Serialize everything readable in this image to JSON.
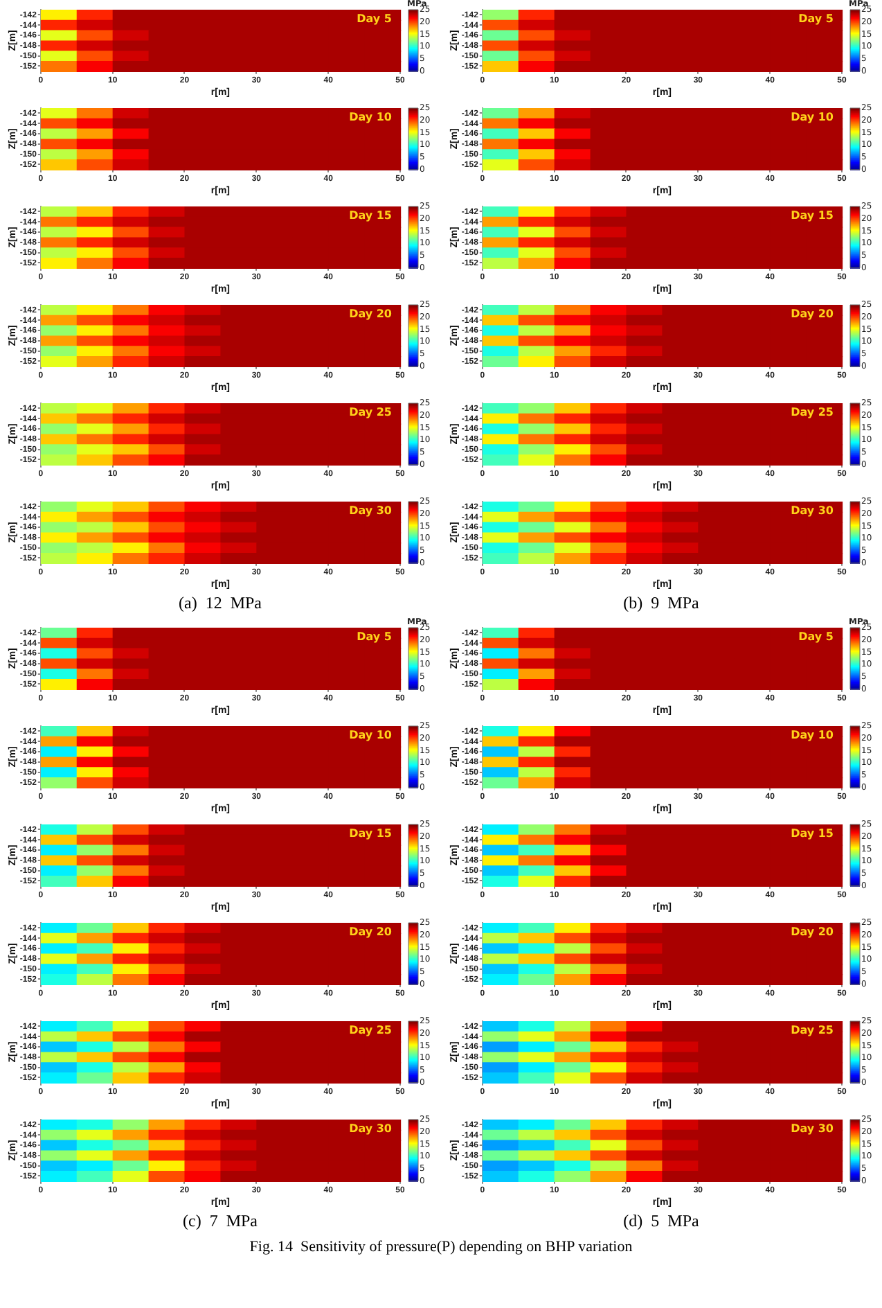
{
  "chart_data": [
    {
      "type": "heatmap",
      "title": "Day 5",
      "xlabel": "r[m]",
      "ylabel": "Z[m]",
      "clabel": "MPa",
      "xlim": [
        0,
        50
      ],
      "xticks": [
        0,
        10,
        20,
        30,
        40,
        50
      ],
      "ylim": [
        -153,
        -141
      ],
      "yticks": [
        -142,
        -144,
        -146,
        -148,
        -150,
        -152
      ],
      "clim": [
        0,
        25
      ],
      "cticks": [
        0,
        5,
        10,
        15,
        20,
        25
      ],
      "cells": [
        [
          16,
          21,
          24,
          24,
          24,
          24,
          24,
          24,
          24,
          24
        ],
        [
          21,
          23,
          24,
          24,
          24,
          24,
          24,
          24,
          24,
          24
        ],
        [
          15,
          20,
          23,
          24,
          24,
          24,
          24,
          24,
          24,
          24
        ],
        [
          21,
          23,
          24,
          24,
          24,
          24,
          24,
          24,
          24,
          24
        ],
        [
          15,
          20,
          23,
          24,
          24,
          24,
          24,
          24,
          24,
          24
        ],
        [
          19,
          22,
          24,
          24,
          24,
          24,
          24,
          24,
          24,
          24
        ]
      ]
    },
    {
      "type": "heatmap",
      "title": "Day 10",
      "xlabel": "r[m]",
      "ylabel": "Z[m]",
      "xlim": [
        0,
        50
      ],
      "xticks": [
        0,
        10,
        20,
        30,
        40,
        50
      ],
      "ylim": [
        -153,
        -141
      ],
      "yticks": [
        -142,
        -144,
        -146,
        -148,
        -150,
        -152
      ],
      "clim": [
        0,
        25
      ],
      "cticks": [
        0,
        5,
        10,
        15,
        20,
        25
      ],
      "cells": [
        [
          15,
          19,
          23,
          24,
          24,
          24,
          24,
          24,
          24,
          24
        ],
        [
          20,
          22,
          24,
          24,
          24,
          24,
          24,
          24,
          24,
          24
        ],
        [
          14,
          18,
          22,
          24,
          24,
          24,
          24,
          24,
          24,
          24
        ],
        [
          20,
          22,
          24,
          24,
          24,
          24,
          24,
          24,
          24,
          24
        ],
        [
          14,
          18,
          22,
          24,
          24,
          24,
          24,
          24,
          24,
          24
        ],
        [
          17,
          20,
          23,
          24,
          24,
          24,
          24,
          24,
          24,
          24
        ]
      ]
    },
    {
      "type": "heatmap",
      "title": "Day 15",
      "xlabel": "r[m]",
      "ylabel": "Z[m]",
      "xlim": [
        0,
        50
      ],
      "xticks": [
        0,
        10,
        20,
        30,
        40,
        50
      ],
      "ylim": [
        -153,
        -141
      ],
      "yticks": [
        -142,
        -144,
        -146,
        -148,
        -150,
        -152
      ],
      "clim": [
        0,
        25
      ],
      "cticks": [
        0,
        5,
        10,
        15,
        20,
        25
      ],
      "cells": [
        [
          14,
          17,
          21,
          23,
          24,
          24,
          24,
          24,
          24,
          24
        ],
        [
          19,
          21,
          23,
          24,
          24,
          24,
          24,
          24,
          24,
          24
        ],
        [
          14,
          16,
          20,
          23,
          24,
          24,
          24,
          24,
          24,
          24
        ],
        [
          19,
          21,
          23,
          24,
          24,
          24,
          24,
          24,
          24,
          24
        ],
        [
          14,
          16,
          20,
          23,
          24,
          24,
          24,
          24,
          24,
          24
        ],
        [
          16,
          19,
          22,
          24,
          24,
          24,
          24,
          24,
          24,
          24
        ]
      ]
    },
    {
      "type": "heatmap",
      "title": "Day 20",
      "xlabel": "r[m]",
      "ylabel": "Z[m]",
      "xlim": [
        0,
        50
      ],
      "xticks": [
        0,
        10,
        20,
        30,
        40,
        50
      ],
      "ylim": [
        -153,
        -141
      ],
      "yticks": [
        -142,
        -144,
        -146,
        -148,
        -150,
        -152
      ],
      "clim": [
        0,
        25
      ],
      "cticks": [
        0,
        5,
        10,
        15,
        20,
        25
      ],
      "cells": [
        [
          14,
          16,
          19,
          22,
          23,
          24,
          24,
          24,
          24,
          24
        ],
        [
          18,
          20,
          22,
          23,
          24,
          24,
          24,
          24,
          24,
          24
        ],
        [
          13,
          16,
          19,
          22,
          23,
          24,
          24,
          24,
          24,
          24
        ],
        [
          18,
          20,
          22,
          23,
          24,
          24,
          24,
          24,
          24,
          24
        ],
        [
          13,
          16,
          19,
          22,
          23,
          24,
          24,
          24,
          24,
          24
        ],
        [
          15,
          18,
          21,
          23,
          24,
          24,
          24,
          24,
          24,
          24
        ]
      ]
    },
    {
      "type": "heatmap",
      "title": "Day 25",
      "xlabel": "r[m]",
      "ylabel": "Z[m]",
      "xlim": [
        0,
        50
      ],
      "xticks": [
        0,
        10,
        20,
        30,
        40,
        50
      ],
      "ylim": [
        -153,
        -141
      ],
      "yticks": [
        -142,
        -144,
        -146,
        -148,
        -150,
        -152
      ],
      "clim": [
        0,
        25
      ],
      "cticks": [
        0,
        5,
        10,
        15,
        20,
        25
      ],
      "cells": [
        [
          14,
          15,
          18,
          21,
          23,
          24,
          24,
          24,
          24,
          24
        ],
        [
          17,
          19,
          21,
          23,
          24,
          24,
          24,
          24,
          24,
          24
        ],
        [
          13,
          15,
          18,
          21,
          23,
          24,
          24,
          24,
          24,
          24
        ],
        [
          17,
          19,
          21,
          23,
          24,
          24,
          24,
          24,
          24,
          24
        ],
        [
          13,
          15,
          17,
          20,
          23,
          24,
          24,
          24,
          24,
          24
        ],
        [
          14,
          17,
          20,
          22,
          24,
          24,
          24,
          24,
          24,
          24
        ]
      ]
    },
    {
      "type": "heatmap",
      "title": "Day 30",
      "xlabel": "r[m]",
      "ylabel": "Z[m]",
      "annotations": [
        "(a)  12  MPa"
      ],
      "xlim": [
        0,
        50
      ],
      "xticks": [
        0,
        10,
        20,
        30,
        40,
        50
      ],
      "ylim": [
        -153,
        -141
      ],
      "yticks": [
        -142,
        -144,
        -146,
        -148,
        -150,
        -152
      ],
      "clim": [
        0,
        25
      ],
      "cticks": [
        0,
        5,
        10,
        15,
        20,
        25
      ],
      "cells": [
        [
          13,
          15,
          17,
          20,
          22,
          23,
          24,
          24,
          24,
          24
        ],
        [
          16,
          18,
          20,
          22,
          23,
          24,
          24,
          24,
          24,
          24
        ],
        [
          13,
          14,
          17,
          20,
          22,
          23,
          24,
          24,
          24,
          24
        ],
        [
          16,
          18,
          20,
          22,
          23,
          24,
          24,
          24,
          24,
          24
        ],
        [
          13,
          14,
          16,
          19,
          22,
          23,
          24,
          24,
          24,
          24
        ],
        [
          14,
          16,
          19,
          21,
          23,
          24,
          24,
          24,
          24,
          24
        ]
      ]
    },
    {
      "type": "heatmap",
      "title": "Day 5",
      "xlabel": "r[m]",
      "ylabel": "Z[m]",
      "clabel": "MPa",
      "xlim": [
        0,
        50
      ],
      "xticks": [
        0,
        10,
        20,
        30,
        40,
        50
      ],
      "ylim": [
        -153,
        -141
      ],
      "yticks": [
        -142,
        -144,
        -146,
        -148,
        -150,
        -152
      ],
      "clim": [
        0,
        25
      ],
      "cticks": [
        0,
        5,
        10,
        15,
        20,
        25
      ],
      "cells": [
        [
          13,
          21,
          24,
          24,
          24,
          24,
          24,
          24,
          24,
          24
        ],
        [
          20,
          23,
          24,
          24,
          24,
          24,
          24,
          24,
          24,
          24
        ],
        [
          12,
          20,
          23,
          24,
          24,
          24,
          24,
          24,
          24,
          24
        ],
        [
          20,
          23,
          24,
          24,
          24,
          24,
          24,
          24,
          24,
          24
        ],
        [
          12,
          20,
          23,
          24,
          24,
          24,
          24,
          24,
          24,
          24
        ],
        [
          17,
          22,
          24,
          24,
          24,
          24,
          24,
          24,
          24,
          24
        ]
      ]
    },
    {
      "type": "heatmap",
      "title": "Day 10",
      "xlabel": "r[m]",
      "ylabel": "Z[m]",
      "xlim": [
        0,
        50
      ],
      "xticks": [
        0,
        10,
        20,
        30,
        40,
        50
      ],
      "ylim": [
        -153,
        -141
      ],
      "yticks": [
        -142,
        -144,
        -146,
        -148,
        -150,
        -152
      ],
      "clim": [
        0,
        25
      ],
      "cticks": [
        0,
        5,
        10,
        15,
        20,
        25
      ],
      "cells": [
        [
          12,
          18,
          23,
          24,
          24,
          24,
          24,
          24,
          24,
          24
        ],
        [
          19,
          22,
          24,
          24,
          24,
          24,
          24,
          24,
          24,
          24
        ],
        [
          11,
          17,
          22,
          24,
          24,
          24,
          24,
          24,
          24,
          24
        ],
        [
          19,
          22,
          24,
          24,
          24,
          24,
          24,
          24,
          24,
          24
        ],
        [
          11,
          17,
          22,
          24,
          24,
          24,
          24,
          24,
          24,
          24
        ],
        [
          15,
          20,
          23,
          24,
          24,
          24,
          24,
          24,
          24,
          24
        ]
      ]
    },
    {
      "type": "heatmap",
      "title": "Day 15",
      "xlabel": "r[m]",
      "ylabel": "Z[m]",
      "xlim": [
        0,
        50
      ],
      "xticks": [
        0,
        10,
        20,
        30,
        40,
        50
      ],
      "ylim": [
        -153,
        -141
      ],
      "yticks": [
        -142,
        -144,
        -146,
        -148,
        -150,
        -152
      ],
      "clim": [
        0,
        25
      ],
      "cticks": [
        0,
        5,
        10,
        15,
        20,
        25
      ],
      "cells": [
        [
          11,
          16,
          21,
          23,
          24,
          24,
          24,
          24,
          24,
          24
        ],
        [
          18,
          21,
          23,
          24,
          24,
          24,
          24,
          24,
          24,
          24
        ],
        [
          11,
          15,
          20,
          23,
          24,
          24,
          24,
          24,
          24,
          24
        ],
        [
          18,
          21,
          23,
          24,
          24,
          24,
          24,
          24,
          24,
          24
        ],
        [
          11,
          15,
          20,
          23,
          24,
          24,
          24,
          24,
          24,
          24
        ],
        [
          14,
          18,
          22,
          24,
          24,
          24,
          24,
          24,
          24,
          24
        ]
      ]
    },
    {
      "type": "heatmap",
      "title": "Day 20",
      "xlabel": "r[m]",
      "ylabel": "Z[m]",
      "xlim": [
        0,
        50
      ],
      "xticks": [
        0,
        10,
        20,
        30,
        40,
        50
      ],
      "ylim": [
        -153,
        -141
      ],
      "yticks": [
        -142,
        -144,
        -146,
        -148,
        -150,
        -152
      ],
      "clim": [
        0,
        25
      ],
      "cticks": [
        0,
        5,
        10,
        15,
        20,
        25
      ],
      "cells": [
        [
          11,
          14,
          19,
          22,
          23,
          24,
          24,
          24,
          24,
          24
        ],
        [
          17,
          20,
          22,
          23,
          24,
          24,
          24,
          24,
          24,
          24
        ],
        [
          10,
          14,
          18,
          22,
          23,
          24,
          24,
          24,
          24,
          24
        ],
        [
          17,
          20,
          22,
          23,
          24,
          24,
          24,
          24,
          24,
          24
        ],
        [
          10,
          14,
          18,
          21,
          23,
          24,
          24,
          24,
          24,
          24
        ],
        [
          12,
          16,
          20,
          23,
          24,
          24,
          24,
          24,
          24,
          24
        ]
      ]
    },
    {
      "type": "heatmap",
      "title": "Day 25",
      "xlabel": "r[m]",
      "ylabel": "Z[m]",
      "xlim": [
        0,
        50
      ],
      "xticks": [
        0,
        10,
        20,
        30,
        40,
        50
      ],
      "ylim": [
        -153,
        -141
      ],
      "yticks": [
        -142,
        -144,
        -146,
        -148,
        -150,
        -152
      ],
      "clim": [
        0,
        25
      ],
      "cticks": [
        0,
        5,
        10,
        15,
        20,
        25
      ],
      "cells": [
        [
          11,
          13,
          17,
          21,
          23,
          24,
          24,
          24,
          24,
          24
        ],
        [
          16,
          19,
          21,
          23,
          24,
          24,
          24,
          24,
          24,
          24
        ],
        [
          10,
          13,
          17,
          21,
          23,
          24,
          24,
          24,
          24,
          24
        ],
        [
          16,
          19,
          21,
          23,
          24,
          24,
          24,
          24,
          24,
          24
        ],
        [
          10,
          13,
          16,
          20,
          23,
          24,
          24,
          24,
          24,
          24
        ],
        [
          11,
          15,
          19,
          22,
          24,
          24,
          24,
          24,
          24,
          24
        ]
      ]
    },
    {
      "type": "heatmap",
      "title": "Day 30",
      "xlabel": "r[m]",
      "ylabel": "Z[m]",
      "annotations": [
        "(b)  9  MPa"
      ],
      "xlim": [
        0,
        50
      ],
      "xticks": [
        0,
        10,
        20,
        30,
        40,
        50
      ],
      "ylim": [
        -153,
        -141
      ],
      "yticks": [
        -142,
        -144,
        -146,
        -148,
        -150,
        -152
      ],
      "clim": [
        0,
        25
      ],
      "cticks": [
        0,
        5,
        10,
        15,
        20,
        25
      ],
      "cells": [
        [
          10,
          12,
          16,
          20,
          22,
          23,
          24,
          24,
          24,
          24
        ],
        [
          15,
          18,
          20,
          22,
          23,
          24,
          24,
          24,
          24,
          24
        ],
        [
          10,
          12,
          15,
          19,
          22,
          23,
          24,
          24,
          24,
          24
        ],
        [
          15,
          18,
          20,
          22,
          23,
          24,
          24,
          24,
          24,
          24
        ],
        [
          10,
          12,
          15,
          19,
          22,
          23,
          24,
          24,
          24,
          24
        ],
        [
          11,
          14,
          18,
          21,
          23,
          24,
          24,
          24,
          24,
          24
        ]
      ]
    },
    {
      "type": "heatmap",
      "title": "Day 5",
      "xlabel": "r[m]",
      "ylabel": "Z[m]",
      "clabel": "MPa",
      "xlim": [
        0,
        50
      ],
      "xticks": [
        0,
        10,
        20,
        30,
        40,
        50
      ],
      "ylim": [
        -153,
        -141
      ],
      "yticks": [
        -142,
        -144,
        -146,
        -148,
        -150,
        -152
      ],
      "clim": [
        0,
        25
      ],
      "cticks": [
        0,
        5,
        10,
        15,
        20,
        25
      ],
      "cells": [
        [
          12,
          21,
          24,
          24,
          24,
          24,
          24,
          24,
          24,
          24
        ],
        [
          20,
          23,
          24,
          24,
          24,
          24,
          24,
          24,
          24,
          24
        ],
        [
          10,
          20,
          23,
          24,
          24,
          24,
          24,
          24,
          24,
          24
        ],
        [
          20,
          23,
          24,
          24,
          24,
          24,
          24,
          24,
          24,
          24
        ],
        [
          10,
          19,
          23,
          24,
          24,
          24,
          24,
          24,
          24,
          24
        ],
        [
          16,
          22,
          24,
          24,
          24,
          24,
          24,
          24,
          24,
          24
        ]
      ]
    },
    {
      "type": "heatmap",
      "title": "Day 10",
      "xlabel": "r[m]",
      "ylabel": "Z[m]",
      "xlim": [
        0,
        50
      ],
      "xticks": [
        0,
        10,
        20,
        30,
        40,
        50
      ],
      "ylim": [
        -153,
        -141
      ],
      "yticks": [
        -142,
        -144,
        -146,
        -148,
        -150,
        -152
      ],
      "clim": [
        0,
        25
      ],
      "cticks": [
        0,
        5,
        10,
        15,
        20,
        25
      ],
      "cells": [
        [
          11,
          17,
          23,
          24,
          24,
          24,
          24,
          24,
          24,
          24
        ],
        [
          18,
          22,
          24,
          24,
          24,
          24,
          24,
          24,
          24,
          24
        ],
        [
          9,
          16,
          22,
          24,
          24,
          24,
          24,
          24,
          24,
          24
        ],
        [
          18,
          22,
          24,
          24,
          24,
          24,
          24,
          24,
          24,
          24
        ],
        [
          9,
          16,
          22,
          24,
          24,
          24,
          24,
          24,
          24,
          24
        ],
        [
          13,
          20,
          23,
          24,
          24,
          24,
          24,
          24,
          24,
          24
        ]
      ]
    },
    {
      "type": "heatmap",
      "title": "Day 15",
      "xlabel": "r[m]",
      "ylabel": "Z[m]",
      "xlim": [
        0,
        50
      ],
      "xticks": [
        0,
        10,
        20,
        30,
        40,
        50
      ],
      "ylim": [
        -153,
        -141
      ],
      "yticks": [
        -142,
        -144,
        -146,
        -148,
        -150,
        -152
      ],
      "clim": [
        0,
        25
      ],
      "cticks": [
        0,
        5,
        10,
        15,
        20,
        25
      ],
      "cells": [
        [
          10,
          14,
          20,
          23,
          24,
          24,
          24,
          24,
          24,
          24
        ],
        [
          17,
          20,
          23,
          24,
          24,
          24,
          24,
          24,
          24,
          24
        ],
        [
          9,
          13,
          19,
          23,
          24,
          24,
          24,
          24,
          24,
          24
        ],
        [
          17,
          20,
          23,
          24,
          24,
          24,
          24,
          24,
          24,
          24
        ],
        [
          9,
          13,
          19,
          23,
          24,
          24,
          24,
          24,
          24,
          24
        ],
        [
          11,
          17,
          22,
          24,
          24,
          24,
          24,
          24,
          24,
          24
        ]
      ]
    },
    {
      "type": "heatmap",
      "title": "Day 20",
      "xlabel": "r[m]",
      "ylabel": "Z[m]",
      "xlim": [
        0,
        50
      ],
      "xticks": [
        0,
        10,
        20,
        30,
        40,
        50
      ],
      "ylim": [
        -153,
        -141
      ],
      "yticks": [
        -142,
        -144,
        -146,
        -148,
        -150,
        -152
      ],
      "clim": [
        0,
        25
      ],
      "cticks": [
        0,
        5,
        10,
        15,
        20,
        25
      ],
      "cells": [
        [
          9,
          12,
          17,
          21,
          23,
          24,
          24,
          24,
          24,
          24
        ],
        [
          15,
          18,
          21,
          23,
          24,
          24,
          24,
          24,
          24,
          24
        ],
        [
          9,
          11,
          16,
          21,
          23,
          24,
          24,
          24,
          24,
          24
        ],
        [
          15,
          18,
          21,
          23,
          24,
          24,
          24,
          24,
          24,
          24
        ],
        [
          9,
          11,
          16,
          20,
          23,
          24,
          24,
          24,
          24,
          24
        ],
        [
          10,
          14,
          19,
          22,
          24,
          24,
          24,
          24,
          24,
          24
        ]
      ]
    },
    {
      "type": "heatmap",
      "title": "Day 25",
      "xlabel": "r[m]",
      "ylabel": "Z[m]",
      "xlim": [
        0,
        50
      ],
      "xticks": [
        0,
        10,
        20,
        30,
        40,
        50
      ],
      "ylim": [
        -153,
        -141
      ],
      "yticks": [
        -142,
        -144,
        -146,
        -148,
        -150,
        -152
      ],
      "clim": [
        0,
        25
      ],
      "cticks": [
        0,
        5,
        10,
        15,
        20,
        25
      ],
      "cells": [
        [
          9,
          11,
          15,
          20,
          22,
          24,
          24,
          24,
          24,
          24
        ],
        [
          14,
          17,
          20,
          22,
          24,
          24,
          24,
          24,
          24,
          24
        ],
        [
          8,
          10,
          14,
          19,
          22,
          24,
          24,
          24,
          24,
          24
        ],
        [
          14,
          17,
          20,
          22,
          24,
          24,
          24,
          24,
          24,
          24
        ],
        [
          8,
          10,
          14,
          18,
          22,
          24,
          24,
          24,
          24,
          24
        ],
        [
          9,
          12,
          17,
          21,
          23,
          24,
          24,
          24,
          24,
          24
        ]
      ]
    },
    {
      "type": "heatmap",
      "title": "Day 30",
      "xlabel": "r[m]",
      "ylabel": "Z[m]",
      "annotations": [
        "(c)  7  MPa"
      ],
      "xlim": [
        0,
        50
      ],
      "xticks": [
        0,
        10,
        20,
        30,
        40,
        50
      ],
      "ylim": [
        -153,
        -141
      ],
      "yticks": [
        -142,
        -144,
        -146,
        -148,
        -150,
        -152
      ],
      "clim": [
        0,
        25
      ],
      "cticks": [
        0,
        5,
        10,
        15,
        20,
        25
      ],
      "cells": [
        [
          9,
          10,
          13,
          18,
          21,
          23,
          24,
          24,
          24,
          24
        ],
        [
          13,
          15,
          18,
          21,
          23,
          24,
          24,
          24,
          24,
          24
        ],
        [
          8,
          10,
          12,
          17,
          21,
          23,
          24,
          24,
          24,
          24
        ],
        [
          13,
          15,
          18,
          21,
          23,
          24,
          24,
          24,
          24,
          24
        ],
        [
          8,
          9,
          12,
          16,
          21,
          23,
          24,
          24,
          24,
          24
        ],
        [
          9,
          11,
          15,
          20,
          22,
          24,
          24,
          24,
          24,
          24
        ]
      ]
    },
    {
      "type": "heatmap",
      "title": "Day 5",
      "xlabel": "r[m]",
      "ylabel": "Z[m]",
      "clabel": "MPa",
      "xlim": [
        0,
        50
      ],
      "xticks": [
        0,
        10,
        20,
        30,
        40,
        50
      ],
      "ylim": [
        -153,
        -141
      ],
      "yticks": [
        -142,
        -144,
        -146,
        -148,
        -150,
        -152
      ],
      "clim": [
        0,
        25
      ],
      "cticks": [
        0,
        5,
        10,
        15,
        20,
        25
      ],
      "cells": [
        [
          11,
          21,
          24,
          24,
          24,
          24,
          24,
          24,
          24,
          24
        ],
        [
          20,
          23,
          24,
          24,
          24,
          24,
          24,
          24,
          24,
          24
        ],
        [
          9,
          19,
          23,
          24,
          24,
          24,
          24,
          24,
          24,
          24
        ],
        [
          20,
          23,
          24,
          24,
          24,
          24,
          24,
          24,
          24,
          24
        ],
        [
          9,
          18,
          23,
          24,
          24,
          24,
          24,
          24,
          24,
          24
        ],
        [
          14,
          22,
          24,
          24,
          24,
          24,
          24,
          24,
          24,
          24
        ]
      ]
    },
    {
      "type": "heatmap",
      "title": "Day 10",
      "xlabel": "r[m]",
      "ylabel": "Z[m]",
      "xlim": [
        0,
        50
      ],
      "xticks": [
        0,
        10,
        20,
        30,
        40,
        50
      ],
      "ylim": [
        -153,
        -141
      ],
      "yticks": [
        -142,
        -144,
        -146,
        -148,
        -150,
        -152
      ],
      "clim": [
        0,
        25
      ],
      "cticks": [
        0,
        5,
        10,
        15,
        20,
        25
      ],
      "cells": [
        [
          10,
          16,
          22,
          24,
          24,
          24,
          24,
          24,
          24,
          24
        ],
        [
          17,
          21,
          24,
          24,
          24,
          24,
          24,
          24,
          24,
          24
        ],
        [
          8,
          14,
          21,
          24,
          24,
          24,
          24,
          24,
          24,
          24
        ],
        [
          17,
          21,
          24,
          24,
          24,
          24,
          24,
          24,
          24,
          24
        ],
        [
          8,
          14,
          21,
          24,
          24,
          24,
          24,
          24,
          24,
          24
        ],
        [
          12,
          18,
          23,
          24,
          24,
          24,
          24,
          24,
          24,
          24
        ]
      ]
    },
    {
      "type": "heatmap",
      "title": "Day 15",
      "xlabel": "r[m]",
      "ylabel": "Z[m]",
      "xlim": [
        0,
        50
      ],
      "xticks": [
        0,
        10,
        20,
        30,
        40,
        50
      ],
      "ylim": [
        -153,
        -141
      ],
      "yticks": [
        -142,
        -144,
        -146,
        -148,
        -150,
        -152
      ],
      "clim": [
        0,
        25
      ],
      "cticks": [
        0,
        5,
        10,
        15,
        20,
        25
      ],
      "cells": [
        [
          9,
          13,
          19,
          23,
          24,
          24,
          24,
          24,
          24,
          24
        ],
        [
          16,
          19,
          22,
          24,
          24,
          24,
          24,
          24,
          24,
          24
        ],
        [
          8,
          11,
          17,
          22,
          24,
          24,
          24,
          24,
          24,
          24
        ],
        [
          16,
          19,
          22,
          24,
          24,
          24,
          24,
          24,
          24,
          24
        ],
        [
          8,
          11,
          17,
          22,
          24,
          24,
          24,
          24,
          24,
          24
        ],
        [
          10,
          15,
          21,
          24,
          24,
          24,
          24,
          24,
          24,
          24
        ]
      ]
    },
    {
      "type": "heatmap",
      "title": "Day 20",
      "xlabel": "r[m]",
      "ylabel": "Z[m]",
      "xlim": [
        0,
        50
      ],
      "xticks": [
        0,
        10,
        20,
        30,
        40,
        50
      ],
      "ylim": [
        -153,
        -141
      ],
      "yticks": [
        -142,
        -144,
        -146,
        -148,
        -150,
        -152
      ],
      "clim": [
        0,
        25
      ],
      "cticks": [
        0,
        5,
        10,
        15,
        20,
        25
      ],
      "cells": [
        [
          9,
          11,
          16,
          21,
          23,
          24,
          24,
          24,
          24,
          24
        ],
        [
          14,
          17,
          20,
          23,
          24,
          24,
          24,
          24,
          24,
          24
        ],
        [
          8,
          10,
          14,
          20,
          23,
          24,
          24,
          24,
          24,
          24
        ],
        [
          14,
          17,
          20,
          23,
          24,
          24,
          24,
          24,
          24,
          24
        ],
        [
          8,
          10,
          14,
          19,
          23,
          24,
          24,
          24,
          24,
          24
        ],
        [
          9,
          12,
          18,
          22,
          24,
          24,
          24,
          24,
          24,
          24
        ]
      ]
    },
    {
      "type": "heatmap",
      "title": "Day 25",
      "xlabel": "r[m]",
      "ylabel": "Z[m]",
      "xlim": [
        0,
        50
      ],
      "xticks": [
        0,
        10,
        20,
        30,
        40,
        50
      ],
      "ylim": [
        -153,
        -141
      ],
      "yticks": [
        -142,
        -144,
        -146,
        -148,
        -150,
        -152
      ],
      "clim": [
        0,
        25
      ],
      "cticks": [
        0,
        5,
        10,
        15,
        20,
        25
      ],
      "cells": [
        [
          8,
          10,
          14,
          19,
          22,
          24,
          24,
          24,
          24,
          24
        ],
        [
          13,
          15,
          18,
          22,
          24,
          24,
          24,
          24,
          24,
          24
        ],
        [
          7,
          9,
          12,
          17,
          21,
          23,
          24,
          24,
          24,
          24
        ],
        [
          13,
          15,
          18,
          21,
          23,
          24,
          24,
          24,
          24,
          24
        ],
        [
          7,
          9,
          12,
          16,
          21,
          23,
          24,
          24,
          24,
          24
        ],
        [
          8,
          11,
          15,
          20,
          23,
          24,
          24,
          24,
          24,
          24
        ]
      ]
    },
    {
      "type": "heatmap",
      "title": "Day 30",
      "xlabel": "r[m]",
      "ylabel": "Z[m]",
      "annotations": [
        "(d)  5  MPa",
        "Fig. 14  Sensitivity of pressure(P) depending on BHP variation"
      ],
      "xlim": [
        0,
        50
      ],
      "xticks": [
        0,
        10,
        20,
        30,
        40,
        50
      ],
      "ylim": [
        -153,
        -141
      ],
      "yticks": [
        -142,
        -144,
        -146,
        -148,
        -150,
        -152
      ],
      "clim": [
        0,
        25
      ],
      "cticks": [
        0,
        5,
        10,
        15,
        20,
        25
      ],
      "cells": [
        [
          8,
          9,
          12,
          17,
          21,
          23,
          24,
          24,
          24,
          24
        ],
        [
          12,
          14,
          17,
          20,
          23,
          24,
          24,
          24,
          24,
          24
        ],
        [
          7,
          8,
          11,
          15,
          20,
          23,
          24,
          24,
          24,
          24
        ],
        [
          12,
          14,
          17,
          20,
          23,
          24,
          24,
          24,
          24,
          24
        ],
        [
          7,
          8,
          10,
          14,
          19,
          23,
          24,
          24,
          24,
          24
        ],
        [
          8,
          10,
          13,
          18,
          22,
          24,
          24,
          24,
          24,
          24
        ]
      ]
    }
  ]
}
